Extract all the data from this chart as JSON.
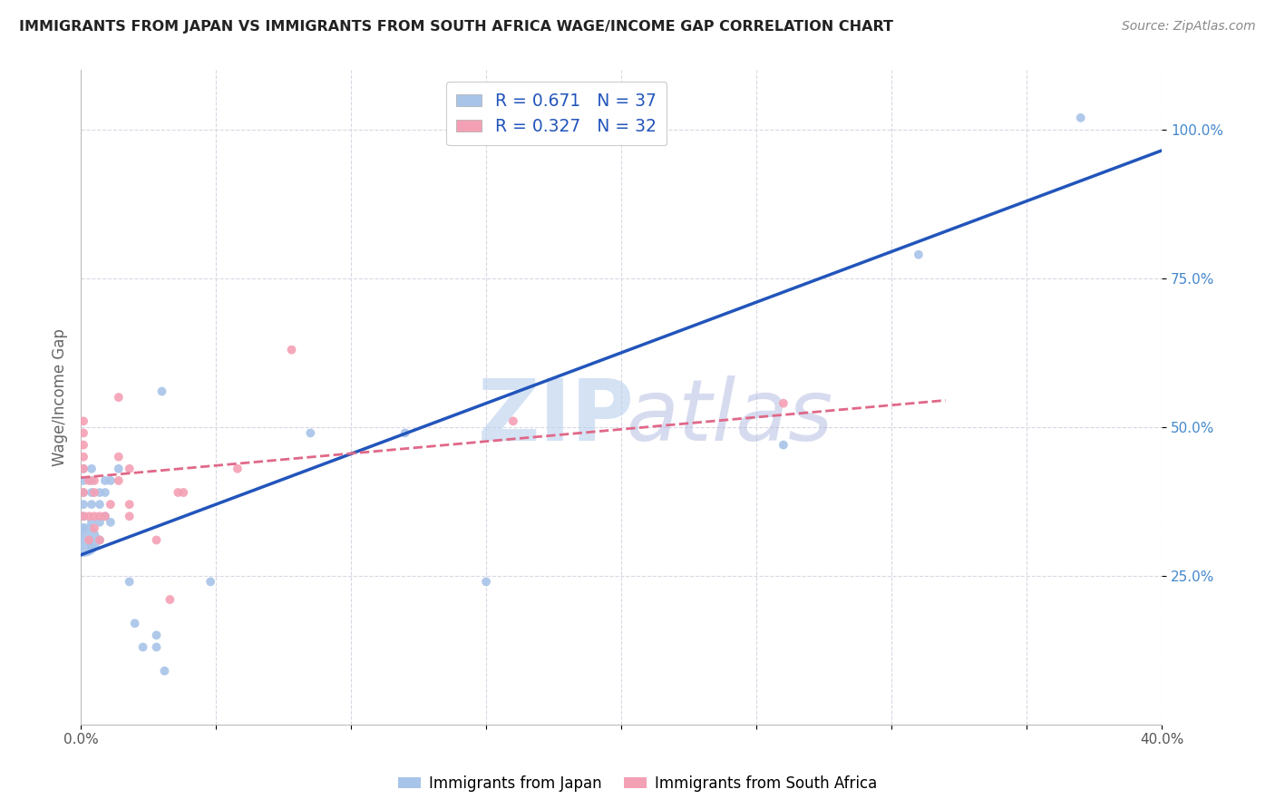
{
  "title": "IMMIGRANTS FROM JAPAN VS IMMIGRANTS FROM SOUTH AFRICA WAGE/INCOME GAP CORRELATION CHART",
  "source": "Source: ZipAtlas.com",
  "ylabel": "Wage/Income Gap",
  "xlim": [
    0.0,
    0.4
  ],
  "ylim": [
    0.0,
    1.1
  ],
  "xticks": [
    0.0,
    0.05,
    0.1,
    0.15,
    0.2,
    0.25,
    0.3,
    0.35,
    0.4
  ],
  "xticklabels": [
    "0.0%",
    "",
    "",
    "",
    "",
    "",
    "",
    "",
    "40.0%"
  ],
  "ytick_positions": [
    0.25,
    0.5,
    0.75,
    1.0
  ],
  "yticklabels": [
    "25.0%",
    "50.0%",
    "75.0%",
    "100.0%"
  ],
  "japan_R": 0.671,
  "japan_N": 37,
  "sa_R": 0.327,
  "sa_N": 32,
  "japan_color": "#a8c4e8",
  "sa_color": "#f4a0b4",
  "japan_line_color": "#2255bb",
  "sa_line_color": "#e06888",
  "japan_points": [
    [
      0.001,
      0.31
    ],
    [
      0.001,
      0.33
    ],
    [
      0.001,
      0.35
    ],
    [
      0.001,
      0.37
    ],
    [
      0.001,
      0.39
    ],
    [
      0.001,
      0.41
    ],
    [
      0.001,
      0.43
    ],
    [
      0.004,
      0.3
    ],
    [
      0.004,
      0.34
    ],
    [
      0.004,
      0.37
    ],
    [
      0.004,
      0.39
    ],
    [
      0.004,
      0.41
    ],
    [
      0.004,
      0.43
    ],
    [
      0.007,
      0.31
    ],
    [
      0.007,
      0.34
    ],
    [
      0.007,
      0.37
    ],
    [
      0.007,
      0.39
    ],
    [
      0.009,
      0.35
    ],
    [
      0.009,
      0.39
    ],
    [
      0.009,
      0.41
    ],
    [
      0.011,
      0.34
    ],
    [
      0.011,
      0.41
    ],
    [
      0.014,
      0.43
    ],
    [
      0.018,
      0.24
    ],
    [
      0.02,
      0.17
    ],
    [
      0.023,
      0.13
    ],
    [
      0.028,
      0.13
    ],
    [
      0.028,
      0.15
    ],
    [
      0.031,
      0.09
    ],
    [
      0.048,
      0.24
    ],
    [
      0.03,
      0.56
    ],
    [
      0.085,
      0.49
    ],
    [
      0.12,
      0.49
    ],
    [
      0.15,
      0.24
    ],
    [
      0.26,
      0.47
    ],
    [
      0.31,
      0.79
    ],
    [
      0.37,
      1.02
    ]
  ],
  "japan_sizes": [
    50,
    50,
    50,
    50,
    50,
    50,
    50,
    50,
    50,
    50,
    50,
    50,
    50,
    50,
    50,
    50,
    50,
    50,
    50,
    50,
    50,
    50,
    50,
    50,
    50,
    50,
    50,
    50,
    50,
    50,
    50,
    50,
    50,
    50,
    50,
    50,
    50
  ],
  "japan_large_idx": 0,
  "japan_large_size": 700,
  "sa_points": [
    [
      0.001,
      0.35
    ],
    [
      0.001,
      0.39
    ],
    [
      0.001,
      0.43
    ],
    [
      0.001,
      0.45
    ],
    [
      0.001,
      0.47
    ],
    [
      0.001,
      0.49
    ],
    [
      0.001,
      0.51
    ],
    [
      0.003,
      0.31
    ],
    [
      0.003,
      0.35
    ],
    [
      0.003,
      0.41
    ],
    [
      0.005,
      0.33
    ],
    [
      0.005,
      0.35
    ],
    [
      0.005,
      0.39
    ],
    [
      0.005,
      0.41
    ],
    [
      0.007,
      0.31
    ],
    [
      0.007,
      0.35
    ],
    [
      0.009,
      0.35
    ],
    [
      0.011,
      0.37
    ],
    [
      0.014,
      0.41
    ],
    [
      0.014,
      0.45
    ],
    [
      0.014,
      0.55
    ],
    [
      0.018,
      0.35
    ],
    [
      0.018,
      0.37
    ],
    [
      0.018,
      0.43
    ],
    [
      0.028,
      0.31
    ],
    [
      0.033,
      0.21
    ],
    [
      0.036,
      0.39
    ],
    [
      0.038,
      0.39
    ],
    [
      0.058,
      0.43
    ],
    [
      0.078,
      0.63
    ],
    [
      0.16,
      0.51
    ],
    [
      0.26,
      0.54
    ]
  ],
  "sa_sizes": [
    50,
    50,
    50,
    50,
    50,
    50,
    50,
    50,
    50,
    50,
    50,
    50,
    50,
    50,
    50,
    50,
    50,
    50,
    50,
    50,
    50,
    50,
    50,
    50,
    50,
    50,
    50,
    50,
    50,
    50,
    50,
    50
  ],
  "japan_line_x": [
    0.0,
    0.4
  ],
  "japan_line_y": [
    0.285,
    0.965
  ],
  "sa_line_x": [
    0.0,
    0.32
  ],
  "sa_line_y": [
    0.415,
    0.545
  ],
  "grid_color": "#d8d8e4",
  "background_color": "#ffffff"
}
